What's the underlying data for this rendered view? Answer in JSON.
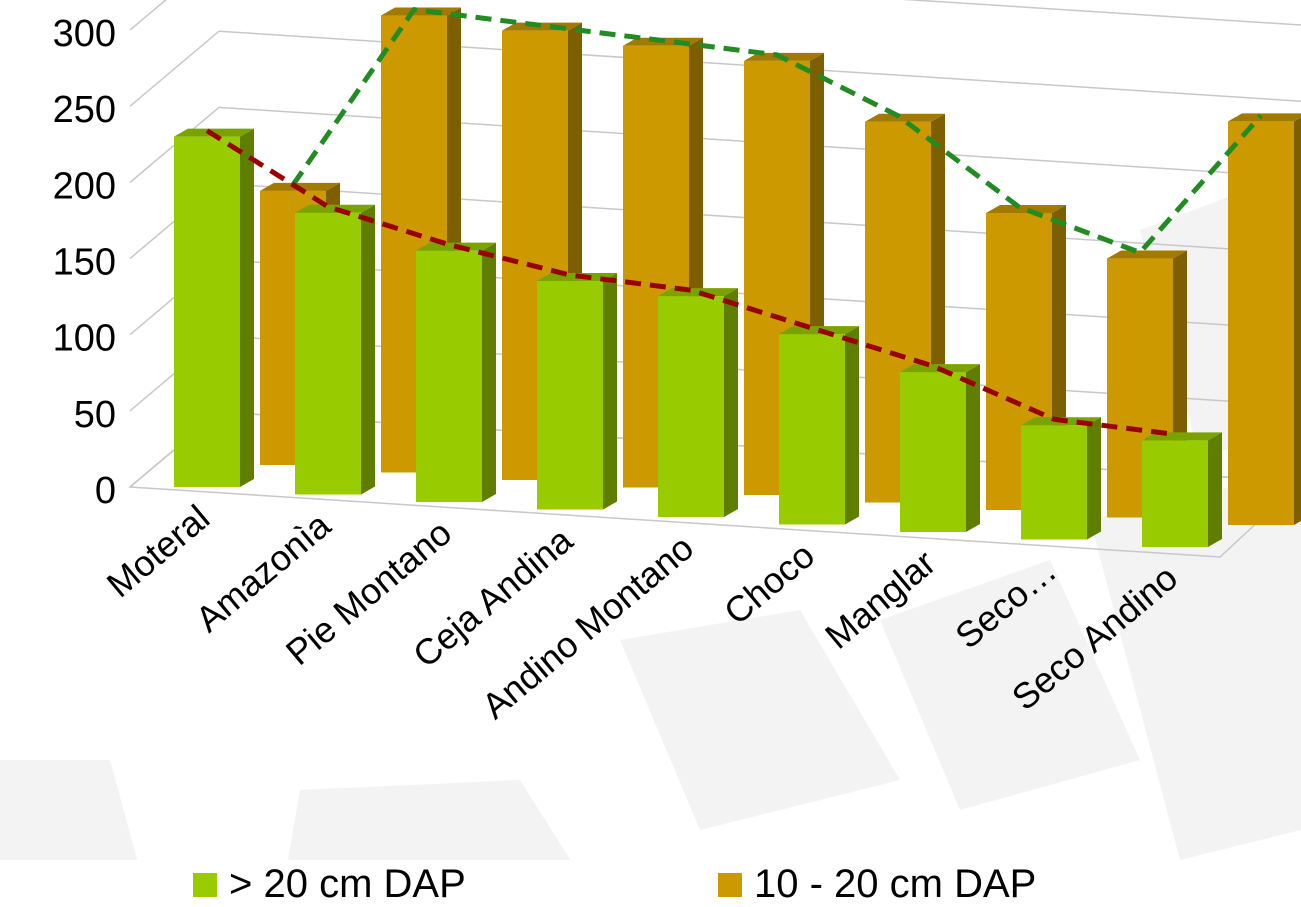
{
  "chart_data": {
    "type": "bar",
    "variant": "3d-clustered",
    "categories": [
      "Moteral",
      "Amazonìa",
      "Pie Montano",
      "Ceja Andina",
      "Andino Montano",
      "Choco",
      "Manglar",
      "Seco…",
      "Seco Andino"
    ],
    "series": [
      {
        "name": "> 20 cm DAP",
        "values": [
          230,
          185,
          165,
          150,
          145,
          125,
          105,
          75,
          70
        ],
        "color": "#99cc00"
      },
      {
        "name": "10 - 20 cm DAP",
        "values": [
          180,
          300,
          295,
          290,
          285,
          250,
          195,
          170,
          265
        ],
        "color": "#cc9900"
      }
    ],
    "trendlines": [
      {
        "series": "> 20 cm DAP",
        "style": "dashed",
        "color": "#990000"
      },
      {
        "series": "10 - 20 cm DAP",
        "style": "dashed",
        "color": "#228b22"
      }
    ],
    "yticks": [
      "0",
      "50",
      "100",
      "150",
      "200",
      "250",
      "300"
    ],
    "ylim": [
      0,
      300
    ],
    "title": "",
    "xlabel": "",
    "ylabel": "",
    "grid": true,
    "legend": "bottom"
  }
}
